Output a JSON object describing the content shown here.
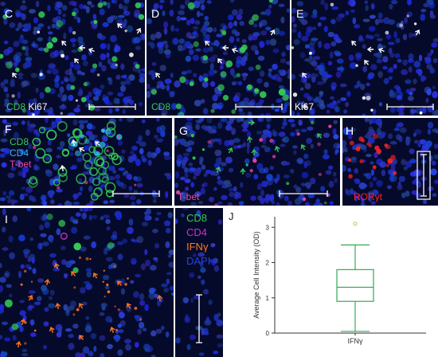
{
  "panels": {
    "c": {
      "letter": "C",
      "stain_1": "CD8",
      "stain_2": "Ki67"
    },
    "d": {
      "letter": "D",
      "stain_1": "CD8"
    },
    "e": {
      "letter": "E",
      "stain_1": "Ki67"
    },
    "f": {
      "letter": "F",
      "stain_1": "CD8",
      "stain_2": "CD4",
      "stain_3": "T-bet"
    },
    "g": {
      "letter": "G",
      "stain_1": "T-bet"
    },
    "h": {
      "letter": "H",
      "stain_1": "RORγt"
    },
    "i": {
      "letter": "I"
    },
    "legend_i": {
      "items": [
        "CD8",
        "CD4",
        "IFNγ",
        "DAPI"
      ]
    },
    "j": {
      "letter": "J"
    }
  },
  "colors": {
    "cd8": "#33cc55",
    "ki67": "#ffffff",
    "cd4": "#33bbee",
    "tbet": "#ee44aa",
    "rorgt": "#ff2222",
    "cd4_legend": "#cc33cc",
    "ifng": "#ff7722",
    "dapi": "#2244dd",
    "box": "#33aa55"
  },
  "chart_data": {
    "type": "box",
    "categories": [
      "IFNγ"
    ],
    "ylabel": "Average Cell Intensity (OD)",
    "xlabel": "",
    "ylim": [
      0,
      3.3
    ],
    "yticks": [
      0,
      1,
      2,
      3
    ],
    "series": [
      {
        "whisker_low": 0.05,
        "q1": 0.9,
        "median": 1.3,
        "q3": 1.8,
        "whisker_high": 2.5,
        "outliers": [
          3.1
        ]
      }
    ]
  }
}
